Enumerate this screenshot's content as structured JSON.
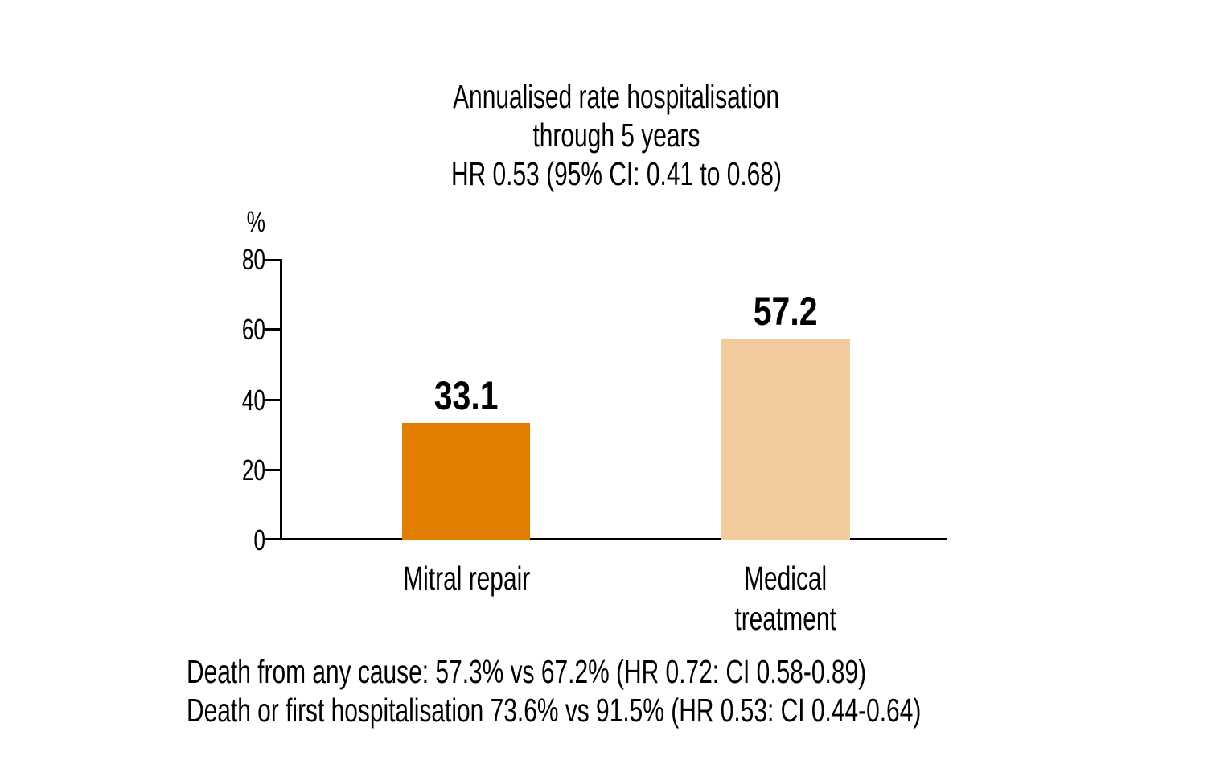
{
  "chart_data": {
    "type": "bar",
    "title_lines": [
      "Annualised rate hospitalisation",
      "through 5 years",
      "HR 0.53 (95% CI: 0.41 to 0.68)"
    ],
    "y_unit": "%",
    "ylabel": "%",
    "xlabel": "",
    "ylim": [
      0,
      80
    ],
    "yticks": [
      0,
      20,
      40,
      60,
      80
    ],
    "grid": false,
    "legend": "none",
    "categories": [
      "Mitral repair",
      "Medical treatment"
    ],
    "category_lines": [
      [
        "Mitral repair"
      ],
      [
        "Medical",
        "treatment"
      ]
    ],
    "values": [
      33.1,
      57.2
    ],
    "bar_colors": [
      "#e17e00",
      "#f3cc9e"
    ],
    "axis_color": "#000000",
    "text_color": "#000000",
    "footnotes": [
      "Death from any cause: 57.3% vs 67.2% (HR 0.72: CI 0.58-0.89)",
      "Death or first hospitalisation 73.6% vs 91.5% (HR 0.53: CI 0.44-0.64)"
    ]
  }
}
